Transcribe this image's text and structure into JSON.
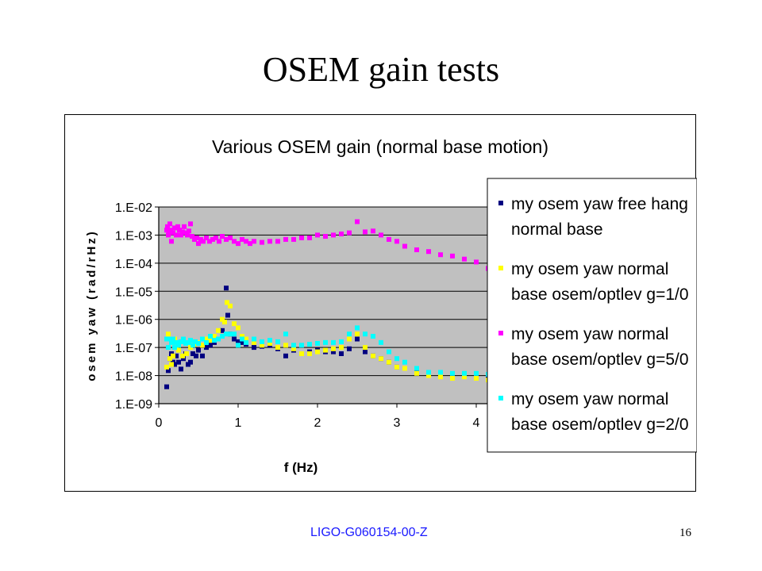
{
  "slide": {
    "title": "OSEM gain tests",
    "footer_id": "LIGO-G060154-00-Z",
    "page_number": "16"
  },
  "chart_data": {
    "type": "scatter",
    "title": "Various OSEM gain (normal base motion)",
    "xlabel": "f (Hz)",
    "ylabel": "osem yaw (rad/rHz)",
    "xlim": [
      0,
      4.2
    ],
    "x_ticks": [
      "0",
      "1",
      "2",
      "3",
      "4"
    ],
    "y_log": true,
    "ylim": [
      1e-09,
      0.01
    ],
    "y_ticks": [
      "1.E-02",
      "1.E-03",
      "1.E-04",
      "1.E-05",
      "1.E-06",
      "1.E-07",
      "1.E-08",
      "1.E-09"
    ],
    "plot_background": "#c0c0c0",
    "legend_position": "right",
    "series": [
      {
        "name": "my osem yaw free hang normal base",
        "color": "#000080",
        "x": [
          0.1,
          0.12,
          0.14,
          0.16,
          0.18,
          0.2,
          0.22,
          0.25,
          0.28,
          0.31,
          0.34,
          0.37,
          0.4,
          0.43,
          0.47,
          0.5,
          0.55,
          0.6,
          0.65,
          0.7,
          0.75,
          0.8,
          0.85,
          0.87,
          0.9,
          0.95,
          1.0,
          1.05,
          1.1,
          1.2,
          1.3,
          1.4,
          1.5,
          1.6,
          1.7,
          1.8,
          1.9,
          2.0,
          2.1,
          2.2,
          2.3,
          2.4,
          2.5,
          2.6,
          2.7,
          2.8,
          2.9,
          3.0,
          3.1,
          3.25,
          3.4,
          3.55,
          3.7,
          3.85,
          4.0,
          4.15
        ],
        "y": [
          4e-09,
          1.5e-08,
          4e-08,
          6e-08,
          3e-08,
          2.5e-08,
          5e-08,
          3e-08,
          1.7e-08,
          4e-08,
          6e-08,
          2.5e-08,
          3e-08,
          6e-08,
          5e-08,
          8e-08,
          5e-08,
          1e-07,
          1.2e-07,
          1.5e-07,
          2e-07,
          4e-07,
          1.3e-05,
          1.4e-06,
          3e-07,
          2e-07,
          1.6e-07,
          1.5e-07,
          1.3e-07,
          1e-07,
          1.1e-07,
          1.2e-07,
          9e-08,
          5e-08,
          8e-08,
          6e-08,
          7e-08,
          8e-08,
          7e-08,
          7e-08,
          6e-08,
          9e-08,
          2e-07,
          7e-08,
          5e-08,
          4e-08,
          3e-08,
          2e-08,
          1.8e-08,
          1.5e-08,
          1.2e-08,
          1.1e-08,
          1e-08,
          1.1e-08,
          1e-08,
          1e-08
        ]
      },
      {
        "name": "my osem yaw normal base osem/optlev g=1/0",
        "color": "#ffff00",
        "x": [
          0.1,
          0.12,
          0.14,
          0.16,
          0.18,
          0.2,
          0.22,
          0.25,
          0.3,
          0.35,
          0.4,
          0.45,
          0.5,
          0.55,
          0.6,
          0.65,
          0.7,
          0.75,
          0.8,
          0.83,
          0.86,
          0.9,
          0.95,
          1.0,
          1.05,
          1.1,
          1.2,
          1.3,
          1.4,
          1.5,
          1.6,
          1.7,
          1.8,
          1.9,
          2.0,
          2.1,
          2.2,
          2.3,
          2.4,
          2.5,
          2.6,
          2.7,
          2.8,
          2.9,
          3.0,
          3.1,
          3.25,
          3.4,
          3.55,
          3.7,
          3.85,
          4.0,
          4.15
        ],
        "y": [
          2e-08,
          3e-07,
          4e-08,
          2.5e-08,
          5e-08,
          2e-07,
          1e-07,
          8e-08,
          5e-08,
          6e-08,
          1e-07,
          1.3e-07,
          1.5e-07,
          1.2e-07,
          2e-07,
          1.8e-07,
          2.5e-07,
          4e-07,
          1e-06,
          8e-07,
          4e-06,
          3e-06,
          7e-07,
          5e-07,
          2.5e-07,
          2e-07,
          1.5e-07,
          1.2e-07,
          1.4e-07,
          1e-07,
          1.2e-07,
          9e-08,
          6e-08,
          6e-08,
          7e-08,
          8e-08,
          9e-08,
          1e-07,
          2e-07,
          3e-07,
          1e-07,
          5e-08,
          4e-08,
          3e-08,
          2e-08,
          1.8e-08,
          1.2e-08,
          1e-08,
          9e-09,
          8e-09,
          9e-09,
          8e-09,
          7e-09
        ]
      },
      {
        "name": "my osem yaw normal base osem/optlev g=5/0",
        "color": "#ff00ff",
        "x": [
          0.1,
          0.11,
          0.12,
          0.13,
          0.14,
          0.15,
          0.16,
          0.18,
          0.2,
          0.22,
          0.24,
          0.26,
          0.28,
          0.3,
          0.32,
          0.34,
          0.36,
          0.38,
          0.4,
          0.42,
          0.45,
          0.48,
          0.5,
          0.53,
          0.56,
          0.6,
          0.64,
          0.68,
          0.72,
          0.76,
          0.8,
          0.85,
          0.9,
          0.95,
          1.0,
          1.05,
          1.1,
          1.15,
          1.2,
          1.3,
          1.4,
          1.5,
          1.6,
          1.7,
          1.8,
          1.9,
          2.0,
          2.1,
          2.2,
          2.3,
          2.4,
          2.5,
          2.6,
          2.7,
          2.8,
          2.9,
          3.0,
          3.1,
          3.25,
          3.4,
          3.55,
          3.7,
          3.85,
          4.0,
          4.15
        ],
        "y": [
          0.0015,
          0.002,
          0.001,
          0.0012,
          0.0025,
          0.0015,
          0.0006,
          0.0012,
          0.0018,
          0.001,
          0.002,
          0.0015,
          0.001,
          0.0013,
          0.002,
          0.0012,
          0.001,
          0.0014,
          0.0025,
          0.0009,
          0.0007,
          0.0008,
          0.0005,
          0.0007,
          0.0006,
          0.0008,
          0.0006,
          0.0007,
          0.0008,
          0.0006,
          0.0009,
          0.0007,
          0.0008,
          0.0006,
          0.0005,
          0.0007,
          0.0006,
          0.0005,
          0.0006,
          0.00055,
          0.0006,
          0.0006,
          0.0007,
          0.0007,
          0.0008,
          0.0008,
          0.001,
          0.0009,
          0.001,
          0.0011,
          0.0012,
          0.003,
          0.0013,
          0.0014,
          0.001,
          0.0007,
          0.0006,
          0.0004,
          0.0003,
          0.00026,
          0.0002,
          0.00018,
          0.00014,
          0.00011,
          6.5e-05
        ]
      },
      {
        "name": "my osem yaw normal base osem/optlev g=2/0",
        "color": "#00ffff",
        "x": [
          0.1,
          0.12,
          0.14,
          0.16,
          0.18,
          0.2,
          0.22,
          0.25,
          0.28,
          0.31,
          0.34,
          0.37,
          0.4,
          0.43,
          0.46,
          0.5,
          0.55,
          0.6,
          0.65,
          0.7,
          0.75,
          0.8,
          0.85,
          0.9,
          0.95,
          1.0,
          1.05,
          1.1,
          1.2,
          1.3,
          1.4,
          1.5,
          1.6,
          1.7,
          1.8,
          1.9,
          2.0,
          2.1,
          2.2,
          2.3,
          2.4,
          2.5,
          2.6,
          2.7,
          2.8,
          2.9,
          3.0,
          3.1,
          3.25,
          3.4,
          3.55,
          3.7,
          3.85,
          4.0,
          4.15
        ],
        "y": [
          2e-07,
          1e-07,
          2e-07,
          1.5e-07,
          2e-07,
          1e-07,
          1.5e-07,
          1.2e-07,
          1.6e-07,
          2e-07,
          1.4e-07,
          1.5e-07,
          1.8e-07,
          1.2e-07,
          1.6e-07,
          1.4e-07,
          2e-07,
          1.5e-07,
          2.5e-07,
          1.8e-07,
          2e-07,
          2.5e-07,
          3e-07,
          3e-07,
          3e-07,
          1.2e-07,
          2e-07,
          1.5e-07,
          2e-07,
          1.6e-07,
          1.8e-07,
          1.6e-07,
          3e-07,
          1.2e-07,
          1.2e-07,
          1.3e-07,
          1.4e-07,
          1.5e-07,
          1.5e-07,
          1.6e-07,
          3e-07,
          5e-07,
          3e-07,
          2.5e-07,
          1.5e-07,
          7e-08,
          4e-08,
          3e-08,
          1.8e-08,
          1.3e-08,
          1.3e-08,
          1.2e-08,
          1.2e-08,
          1.2e-08,
          1.1e-08
        ]
      }
    ]
  }
}
